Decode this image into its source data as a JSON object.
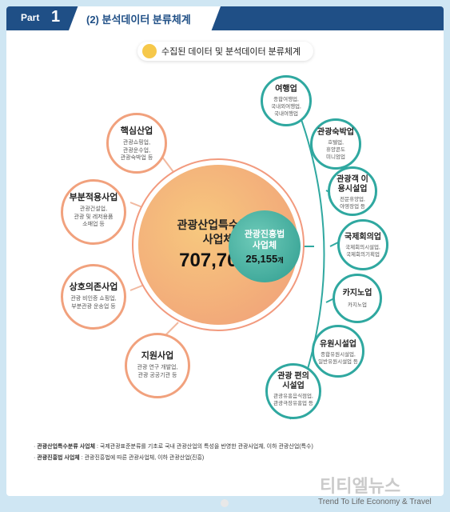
{
  "header": {
    "part_label": "Part",
    "part_number": "1",
    "title": "(2) 분석데이터 분류체계"
  },
  "subtitle": "수집된 데이터 및 분석데이터 분류체계",
  "center": {
    "main_name_line1": "관광산업특수분류",
    "main_name_line2": "사업체",
    "main_count": "707,701",
    "main_unit": "개",
    "sub_name_line1": "관광진흥법",
    "sub_name_line2": "사업체",
    "sub_count": "25,155",
    "sub_unit": "개"
  },
  "left_nodes": [
    {
      "title": "핵심산업",
      "lines": [
        "관광쇼핑업,",
        "관광운수업,",
        "관광숙박업 등"
      ]
    },
    {
      "title": "부분적용사업",
      "lines": [
        "관광건설업,",
        "관광 및 레저용품",
        "소매업 등"
      ]
    },
    {
      "title": "상호의존사업",
      "lines": [
        "관광 비인증 쇼핑업,",
        "부분관광 운송업 등"
      ]
    },
    {
      "title": "지원사업",
      "lines": [
        "관광 연구 개발업,",
        "관광 공공기관 등"
      ]
    }
  ],
  "right_nodes": [
    {
      "title": "여행업",
      "lines": [
        "종합여행업,",
        "국내외여행업,",
        "국내여행업"
      ]
    },
    {
      "title": "관광숙박업",
      "lines": [
        "호텔업,",
        "휴양콘도",
        "미니엄업"
      ]
    },
    {
      "title": "관광객 이용시설업",
      "lines": [
        "전문휴양업,",
        "야영장업 등"
      ]
    },
    {
      "title": "국제회의업",
      "lines": [
        "국제회의시설업,",
        "국제회의기획업"
      ]
    },
    {
      "title": "카지노업",
      "lines": [
        "카지노업"
      ]
    },
    {
      "title": "유원시설업",
      "lines": [
        "종합유원시설업,",
        "일반유원시설업 등"
      ]
    },
    {
      "title": "관광 편의시설업",
      "lines": [
        "관광유흥음식점업,",
        "관광극장유흥업 등"
      ]
    }
  ],
  "notes": [
    {
      "label": "관광산업특수분류 사업체",
      "text": " : 국제관광표준분류를 기초로 국내 관광산업의 특성을 반영한 관광사업체, 이하 관광산업(특수)"
    },
    {
      "label": "관광진흥법 사업체",
      "text": " : 관광진흥법에 따른 관광사업체, 이하 관광산업(진흥)"
    }
  ],
  "watermark": {
    "brand": "티티엘뉴스",
    "slogan": "Trend To Life Economy & Travel"
  },
  "colors": {
    "header_bg": "#1f4f86",
    "orange_accent": "#f1a17d",
    "teal_accent": "#2fa8a0"
  }
}
